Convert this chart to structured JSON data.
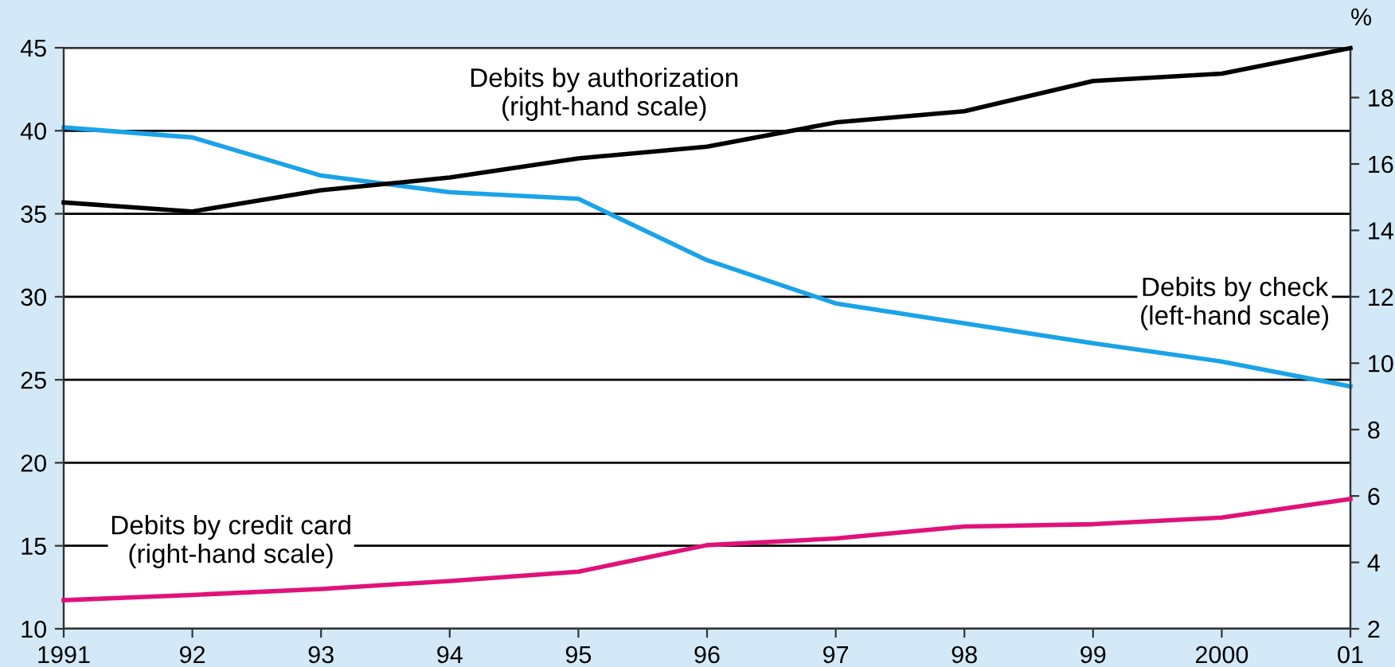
{
  "chart_data": {
    "type": "line",
    "categories": [
      "1991",
      "92",
      "93",
      "94",
      "95",
      "96",
      "97",
      "98",
      "99",
      "2000",
      "01"
    ],
    "series": [
      {
        "name": "Debits by authorization\n(right-hand scale)",
        "color": "#000000",
        "axis": "y2",
        "values": [
          14.84,
          14.57,
          15.21,
          15.59,
          16.17,
          16.52,
          17.25,
          17.59,
          18.5,
          18.72,
          19.49
        ]
      },
      {
        "name": "Debits by check\n(left-hand scale)",
        "color": "#1aa3e8",
        "axis": "y",
        "values": [
          40.2,
          39.6,
          37.3,
          36.3,
          35.9,
          32.2,
          29.6,
          28.4,
          27.2,
          26.1,
          24.6
        ]
      },
      {
        "name": "Debits by credit card\n(right-hand scale)",
        "color": "#e0127a",
        "axis": "y2",
        "values": [
          2.86,
          3.02,
          3.2,
          3.44,
          3.72,
          4.52,
          4.72,
          5.08,
          5.15,
          5.35,
          5.91
        ]
      }
    ],
    "y2label": "%",
    "ylim": [
      10,
      45
    ],
    "yticks": [
      10,
      15,
      20,
      25,
      30,
      35,
      40,
      45
    ],
    "y2lim": [
      2,
      19.5
    ],
    "y2ticks": [
      2,
      4,
      6,
      8,
      10,
      12,
      14,
      16,
      18
    ],
    "grid": "y",
    "legend": false,
    "marker": "none",
    "line_style": "solid"
  }
}
